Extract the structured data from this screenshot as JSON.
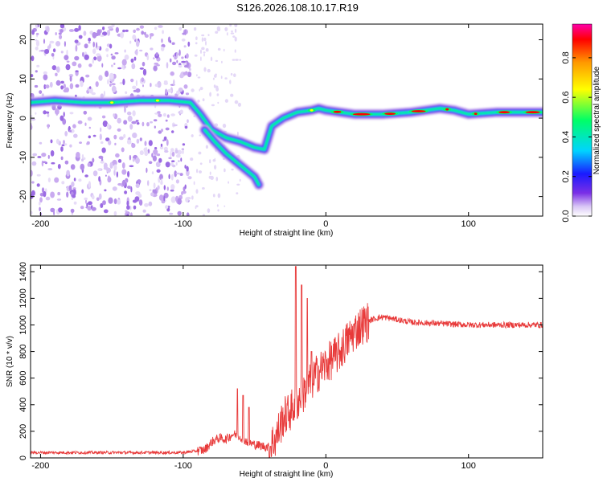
{
  "figure_title": "S126.2026.108.10.17.R19",
  "colors": {
    "line": "#e83a3a",
    "axis": "#000000",
    "colormap": [
      "#ffffff",
      "#d9c6f5",
      "#7a2fe6",
      "#1a1aff",
      "#00d4ff",
      "#00ff66",
      "#ffff00",
      "#ff9900",
      "#ff0000",
      "#ff00aa"
    ]
  },
  "chart_data": [
    {
      "type": "heatmap",
      "name": "spectrogram",
      "xlabel": "Height of straight line (km)",
      "ylabel": "Frequency (Hz)",
      "xlim": [
        -207,
        152
      ],
      "ylim": [
        -25,
        24
      ],
      "xticks": [
        -200,
        -100,
        0,
        100
      ],
      "yticks": [
        -20,
        -10,
        0,
        10,
        20
      ],
      "xtick_labels": [
        "-200",
        "-100",
        "0",
        "100"
      ],
      "ytick_labels": [
        "-20",
        "-10",
        "0",
        "10",
        "20"
      ],
      "noise_region_x": [
        -207,
        -95
      ],
      "ridges": [
        {
          "label": "main",
          "points": [
            [
              -207,
              4
            ],
            [
              -190,
              4.5
            ],
            [
              -170,
              4
            ],
            [
              -150,
              4
            ],
            [
              -130,
              4.5
            ],
            [
              -110,
              4.5
            ],
            [
              -95,
              4
            ],
            [
              -88,
              1
            ],
            [
              -80,
              -3
            ],
            [
              -70,
              -5
            ],
            [
              -60,
              -6
            ],
            [
              -50,
              -7.5
            ],
            [
              -43,
              -8
            ],
            [
              -38,
              -2
            ],
            [
              -30,
              0
            ],
            [
              -20,
              1.5
            ],
            [
              -10,
              2
            ],
            [
              -5,
              2.5
            ],
            [
              0,
              2
            ],
            [
              20,
              1
            ],
            [
              40,
              1
            ],
            [
              60,
              1.5
            ],
            [
              80,
              2.5
            ],
            [
              90,
              2
            ],
            [
              100,
              1
            ],
            [
              120,
              1.5
            ],
            [
              152,
              1.5
            ]
          ]
        },
        {
          "label": "branch",
          "points": [
            [
              -85,
              -3
            ],
            [
              -78,
              -6
            ],
            [
              -70,
              -9
            ],
            [
              -60,
              -12
            ],
            [
              -50,
              -15
            ],
            [
              -47,
              -17
            ]
          ]
        }
      ],
      "colorbar": {
        "label": "Normalized spectral amplitude",
        "range": [
          0,
          0.97
        ],
        "ticks": [
          0,
          0.2,
          0.4,
          0.6,
          0.8
        ],
        "tick_labels": [
          "0.0",
          "0.2",
          "0.4",
          "0.6",
          "0.8"
        ]
      }
    },
    {
      "type": "line",
      "name": "snr",
      "xlabel": "Height of straight line (km)",
      "ylabel": "SNR (10 * v/v)",
      "xlim": [
        -207,
        152
      ],
      "ylim": [
        0,
        1450
      ],
      "xticks": [
        -200,
        -100,
        0,
        100
      ],
      "yticks": [
        0,
        200,
        400,
        600,
        800,
        1000,
        1200,
        1400
      ],
      "xtick_labels": [
        "-200",
        "-100",
        "0",
        "100"
      ],
      "ytick_labels": [
        "0",
        "200",
        "400",
        "600",
        "800",
        "1000",
        "1200",
        "1400"
      ],
      "envelope": [
        [
          -207,
          40
        ],
        [
          -150,
          40
        ],
        [
          -100,
          40
        ],
        [
          -85,
          60
        ],
        [
          -80,
          120
        ],
        [
          -75,
          150
        ],
        [
          -70,
          140
        ],
        [
          -65,
          180
        ],
        [
          -60,
          160
        ],
        [
          -55,
          120
        ],
        [
          -50,
          100
        ],
        [
          -45,
          90
        ],
        [
          -40,
          80
        ],
        [
          -35,
          150
        ],
        [
          -30,
          300
        ],
        [
          -25,
          350
        ],
        [
          -22,
          400
        ],
        [
          -18,
          450
        ],
        [
          -12,
          550
        ],
        [
          -5,
          650
        ],
        [
          0,
          700
        ],
        [
          5,
          750
        ],
        [
          10,
          800
        ],
        [
          15,
          880
        ],
        [
          20,
          950
        ],
        [
          25,
          1000
        ],
        [
          30,
          1030
        ],
        [
          35,
          1050
        ],
        [
          40,
          1060
        ],
        [
          50,
          1040
        ],
        [
          60,
          1020
        ],
        [
          80,
          1010
        ],
        [
          100,
          1000
        ],
        [
          152,
          1000
        ]
      ],
      "spikes": [
        [
          -62,
          520
        ],
        [
          -58,
          470
        ],
        [
          -54,
          380
        ],
        [
          -21,
          1440
        ],
        [
          -17,
          1300
        ],
        [
          -13,
          1200
        ],
        [
          -10,
          800
        ]
      ]
    }
  ]
}
